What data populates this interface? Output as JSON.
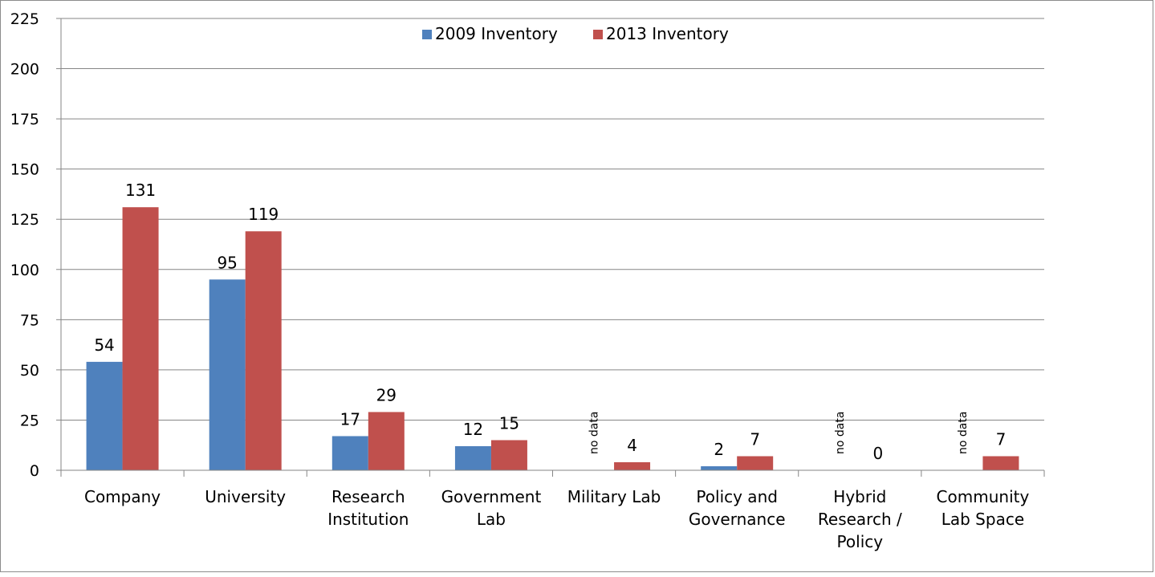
{
  "chart_data": {
    "type": "bar",
    "title": "",
    "xlabel": "",
    "ylabel": "",
    "ylim": [
      0,
      225
    ],
    "yticks": [
      0,
      25,
      50,
      75,
      100,
      125,
      150,
      175,
      200,
      225
    ],
    "grid": true,
    "legend_position": "top-center",
    "categories": [
      [
        "Company"
      ],
      [
        "University"
      ],
      [
        "Research",
        "Institution"
      ],
      [
        "Government",
        "Lab"
      ],
      [
        "Military Lab"
      ],
      [
        "Policy and",
        "Governance"
      ],
      [
        "Hybrid",
        "Research /",
        "Policy"
      ],
      [
        "Community",
        "Lab Space"
      ]
    ],
    "series": [
      {
        "name": "2009 Inventory",
        "color": "#4f81bd",
        "values": [
          54,
          95,
          17,
          12,
          null,
          2,
          null,
          null
        ],
        "labels": [
          "54",
          "95",
          "17",
          "12",
          "no data",
          "2",
          "no data",
          "no data"
        ]
      },
      {
        "name": "2013 Inventory",
        "color": "#c0504d",
        "values": [
          131,
          119,
          29,
          15,
          4,
          7,
          0,
          7
        ],
        "labels": [
          "131",
          "119",
          "29",
          "15",
          "4",
          "7",
          "0",
          "7"
        ]
      }
    ]
  }
}
